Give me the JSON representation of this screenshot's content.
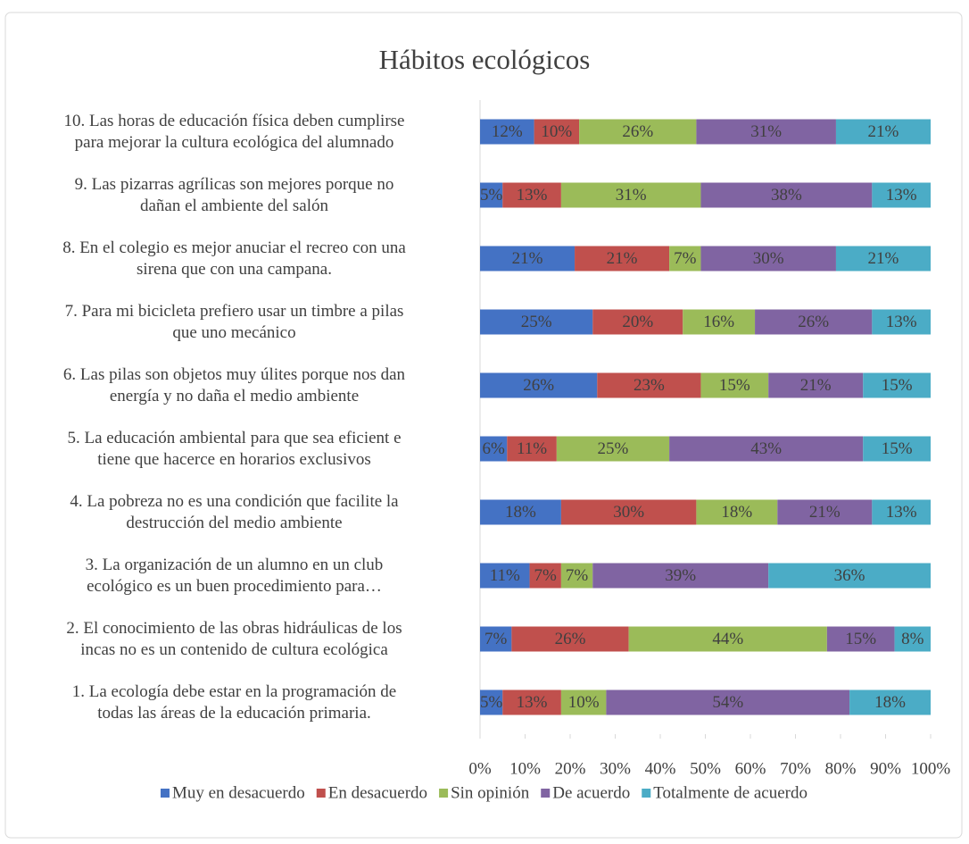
{
  "chart_data": {
    "type": "stacked-barh",
    "title": "Hábitos ecológicos",
    "categories": [
      "10. Las horas de educación física deben cumplirse\npara mejorar la cultura ecológica del alumnado",
      "9. Las pizarras agrílicas son mejores porque no\ndañan el ambiente del salón",
      "8. En el colegio es mejor anuciar el recreo con una\nsirena que con una campana.",
      "7. Para mi bicicleta prefiero usar un timbre a pilas\nque uno mecánico",
      "6. Las pilas son objetos muy úlites porque nos dan\nenergía y no daña el medio ambiente",
      "5. La educación ambiental para que sea eficient e\ntiene que hacerce en horarios exclusivos",
      "4. La pobreza no es una condición que facilite la\ndestrucción del medio ambiente",
      "3. La organización de un alumno en un club\necológico es un buen procedimiento para…",
      "2. El conocimiento de las obras hidráulicas de los\nincas no es un contenido de cultura ecológica",
      "1. La ecología debe estar en la programación de\ntodas las áreas de la educación primaria."
    ],
    "series": [
      {
        "name": "Muy en desacuerdo",
        "color": "#4472c4",
        "values": [
          12,
          5,
          21,
          25,
          26,
          6,
          18,
          11,
          7,
          5
        ],
        "value_labels": [
          "12%",
          "5%",
          "21%",
          "25%",
          "26%",
          "6%",
          "18%",
          "11%",
          "7%",
          "5%"
        ]
      },
      {
        "name": "En desacuerdo",
        "color": "#c0504d",
        "values": [
          10,
          13,
          21,
          20,
          23,
          11,
          30,
          7,
          26,
          13
        ],
        "value_labels": [
          "10%",
          "13%",
          "21%",
          "20%",
          "23%",
          "11%",
          "30%",
          "7%",
          "26%",
          "13%"
        ]
      },
      {
        "name": "Sin opinión",
        "color": "#9bbb59",
        "values": [
          26,
          31,
          7,
          16,
          15,
          25,
          18,
          7,
          44,
          10
        ],
        "value_labels": [
          "26%",
          "31%",
          "7%",
          "16%",
          "15%",
          "25%",
          "18%",
          "7%",
          "44%",
          "10%"
        ]
      },
      {
        "name": "De acuerdo",
        "color": "#8064a2",
        "values": [
          31,
          38,
          30,
          26,
          21,
          43,
          21,
          39,
          15,
          54
        ],
        "value_labels": [
          "31%",
          "38%",
          "30%",
          "26%",
          "21%",
          "43%",
          "21%",
          "39%",
          "15%",
          "54%"
        ]
      },
      {
        "name": "Totalmente de acuerdo",
        "color": "#4bacc6",
        "values": [
          21,
          13,
          21,
          13,
          15,
          15,
          13,
          36,
          8,
          18
        ],
        "value_labels": [
          "21%",
          "13%",
          "21%",
          "13%",
          "15%",
          "15%",
          "13%",
          "36%",
          "8%",
          "18%"
        ]
      }
    ],
    "xlim": [
      0,
      100
    ],
    "xticks": [
      {
        "value": 0,
        "label": "0%"
      },
      {
        "value": 10,
        "label": "10%"
      },
      {
        "value": 20,
        "label": "20%"
      },
      {
        "value": 30,
        "label": "30%"
      },
      {
        "value": 40,
        "label": "40%"
      },
      {
        "value": 50,
        "label": "50%"
      },
      {
        "value": 60,
        "label": "60%"
      },
      {
        "value": 70,
        "label": "70%"
      },
      {
        "value": 80,
        "label": "80%"
      },
      {
        "value": 90,
        "label": "90%"
      },
      {
        "value": 100,
        "label": "100%"
      }
    ],
    "grid": false,
    "legend": "bottom"
  }
}
